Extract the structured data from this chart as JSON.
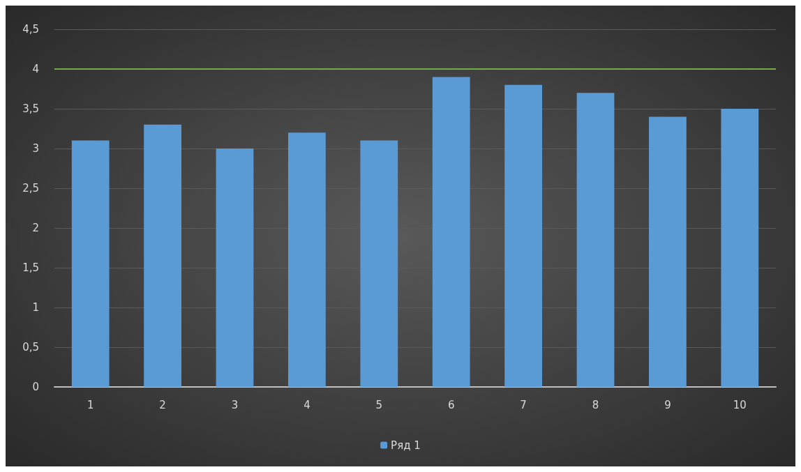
{
  "chart_data": {
    "type": "bar",
    "categories": [
      "1",
      "2",
      "3",
      "4",
      "5",
      "6",
      "7",
      "8",
      "9",
      "10"
    ],
    "series": [
      {
        "name": "Ряд 1",
        "color": "#5b9bd5",
        "values": [
          3.1,
          3.3,
          3.0,
          3.2,
          3.1,
          3.9,
          3.8,
          3.7,
          3.4,
          3.5
        ]
      }
    ],
    "ylim": [
      0,
      4.5
    ],
    "yticks": [
      0,
      {
        "value": 0.5,
        "label": "0,5"
      },
      1,
      {
        "value": 1.5,
        "label": "1,5"
      },
      2,
      {
        "value": 2.5,
        "label": "2,5"
      },
      3,
      {
        "value": 3.5,
        "label": "3,5"
      },
      4,
      {
        "value": 4.5,
        "label": "4,5"
      }
    ],
    "ref_lines": [
      {
        "axis": "y",
        "value": 4,
        "label": null,
        "color": "#70ad47",
        "line_style": "solid"
      }
    ],
    "grid": "y",
    "legend": "bottom"
  }
}
